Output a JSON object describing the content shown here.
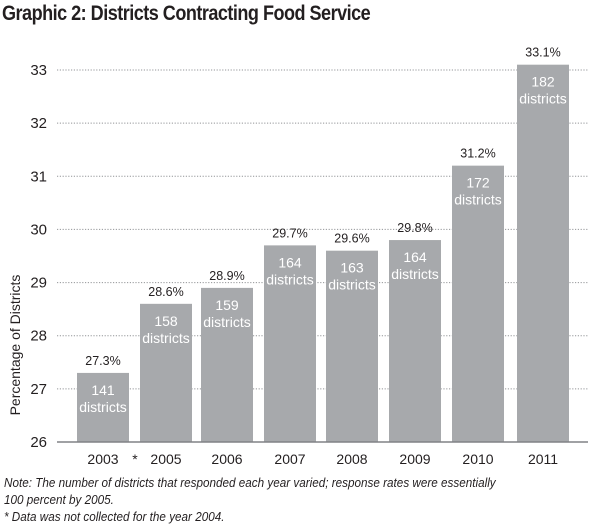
{
  "chart_data": {
    "type": "bar",
    "title": "Graphic 2: Districts Contracting Food Service",
    "xlabel": "",
    "ylabel": "Percentage of Districts",
    "ylim": [
      26,
      33
    ],
    "yticks": [
      26,
      27,
      28,
      29,
      30,
      31,
      32,
      33
    ],
    "grid": "horizontal dotted",
    "categories": [
      "2003",
      "2005",
      "2006",
      "2007",
      "2008",
      "2009",
      "2010",
      "2011"
    ],
    "values": [
      27.3,
      28.6,
      28.9,
      29.7,
      29.6,
      29.8,
      31.2,
      33.1
    ],
    "value_labels": [
      "27.3%",
      "28.6%",
      "28.9%",
      "29.7%",
      "29.6%",
      "29.8%",
      "31.2%",
      "33.1%"
    ],
    "district_counts": [
      141,
      158,
      159,
      164,
      163,
      164,
      172,
      182
    ],
    "count_unit": "districts",
    "gap_marker": {
      "between": [
        "2003",
        "2005"
      ],
      "symbol": "*"
    },
    "bar_color": "#a7a9ac"
  },
  "notes": [
    "Note: The number of districts that responded each year varied; response rates were essentially",
    "100 percent by 2005.",
    "* Data was not collected for the year 2004."
  ]
}
